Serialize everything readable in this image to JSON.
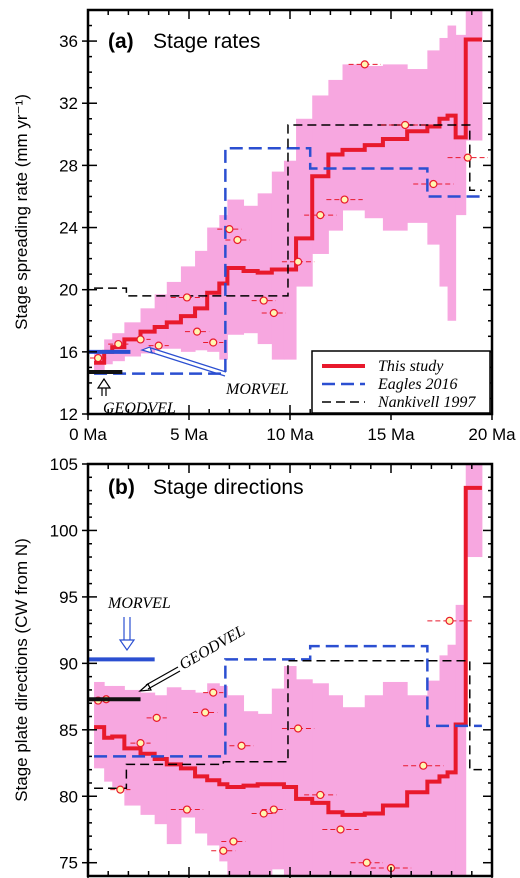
{
  "chart_data": [
    {
      "type": "line",
      "panel_label": "(a)",
      "title": "Stage rates",
      "ylabel": "Stage spreading rate (mm yr⁻¹)",
      "xlabel": "",
      "xlim": [
        0,
        20
      ],
      "ylim": [
        12,
        38
      ],
      "x_ticks": [
        0,
        5,
        10,
        15,
        20
      ],
      "x_tick_labels": [
        "0 Ma",
        "5 Ma",
        "10 Ma",
        "15 Ma",
        "20 Ma"
      ],
      "y_ticks": [
        12,
        16,
        20,
        24,
        28,
        32,
        36
      ],
      "y_tick_labels": [
        "12",
        "16",
        "20",
        "24",
        "28",
        "32",
        "36"
      ],
      "grid": false,
      "legend_position": "bottom-right",
      "legend": [
        "This study",
        "Eagles 2016",
        "Nankivell 1997"
      ],
      "series": [
        {
          "name": "This study",
          "style": "step",
          "color": "#e8192c",
          "edges": [
            0.3,
            0.8,
            1.2,
            1.8,
            2.6,
            3.3,
            3.9,
            4.6,
            5.3,
            5.9,
            6.5,
            6.9,
            7.7,
            8.4,
            9.1,
            9.7,
            10.3,
            11.1,
            11.9,
            12.6,
            13.7,
            14.6,
            15.8,
            16.8,
            17.4,
            17.8,
            18.2,
            18.7,
            19.5
          ],
          "values": [
            15.3,
            16.0,
            16.3,
            16.8,
            17.3,
            17.6,
            17.9,
            18.3,
            18.8,
            19.8,
            20.4,
            21.4,
            21.2,
            21.1,
            21.3,
            21.3,
            23.3,
            27.3,
            28.7,
            29.0,
            29.3,
            29.7,
            30.2,
            30.5,
            31.0,
            31.2,
            29.8,
            36.1
          ]
        },
        {
          "name": "Eagles 2016",
          "style": "step",
          "color": "#2b4fd1",
          "edges": [
            0.3,
            1.2,
            3.1,
            6.8,
            9.9,
            11.0,
            15.2,
            16.8,
            19.5
          ],
          "values": [
            14.6,
            14.6,
            14.6,
            29.1,
            29.1,
            27.8,
            27.8,
            26.0
          ]
        },
        {
          "name": "Nankivell 1997",
          "style": "step",
          "color": "#000000",
          "edges": [
            0.3,
            1.9,
            2.3,
            5.2,
            6.7,
            9.9,
            15.7,
            18.9,
            19.5
          ],
          "values": [
            20.1,
            19.6,
            19.6,
            19.6,
            19.6,
            30.6,
            30.6,
            26.4
          ]
        },
        {
          "name": "Uncertainty band",
          "style": "band",
          "color": "#f7a7e0",
          "edges": [
            0.3,
            0.8,
            1.2,
            1.8,
            2.6,
            3.3,
            3.9,
            4.6,
            5.3,
            5.9,
            6.5,
            6.9,
            7.7,
            8.4,
            9.1,
            9.7,
            10.3,
            11.1,
            11.9,
            12.6,
            13.7,
            14.6,
            15.8,
            16.8,
            17.4,
            17.8,
            18.2,
            18.7,
            19.5
          ],
          "lower": [
            14.6,
            15.2,
            15.4,
            15.7,
            15.9,
            16.2,
            16.2,
            16.0,
            16.1,
            16.0,
            15.5,
            17.1,
            17.2,
            16.5,
            15.5,
            15.5,
            20.2,
            22.3,
            23.8,
            25.1,
            24.6,
            23.8,
            24.3,
            22.9,
            20.2,
            18.0,
            24.8,
            29.6
          ],
          "upper": [
            16.0,
            16.8,
            17.2,
            17.9,
            18.8,
            19.7,
            20.5,
            21.5,
            22.5,
            24.0,
            24.8,
            25.8,
            25.4,
            26.2,
            27.6,
            28.3,
            31.0,
            32.5,
            33.5,
            34.5,
            34.4,
            34.5,
            34.2,
            35.4,
            36.2,
            37.0,
            36.4,
            38.0
          ]
        },
        {
          "name": "Point estimates",
          "style": "scatter",
          "color": "#e8192c",
          "x": [
            0.5,
            1.5,
            2.6,
            3.5,
            4.9,
            5.4,
            6.2,
            7.0,
            7.4,
            8.7,
            9.2,
            10.4,
            11.5,
            12.7,
            13.7,
            15.7,
            17.1,
            18.8
          ],
          "y": [
            15.6,
            16.5,
            16.8,
            16.4,
            19.5,
            17.3,
            16.6,
            23.9,
            23.2,
            19.3,
            18.5,
            21.8,
            24.8,
            25.8,
            34.5,
            30.6,
            26.8,
            28.5
          ],
          "xerr": [
            0.4,
            0.5,
            0.5,
            0.5,
            0.8,
            0.6,
            0.5,
            0.6,
            0.6,
            0.6,
            0.6,
            0.8,
            0.8,
            0.9,
            0.8,
            1.2,
            1.0,
            1.0
          ]
        },
        {
          "name": "MORVEL",
          "style": "segment",
          "color": "#2b4fd1",
          "x": [
            0,
            2.1
          ],
          "y": [
            16.0,
            16.0
          ]
        },
        {
          "name": "GEODVEL",
          "style": "segment",
          "color": "#111111",
          "x": [
            0,
            1.7
          ],
          "y": [
            14.7,
            14.7
          ]
        }
      ],
      "annotations": [
        {
          "text": "MORVEL",
          "target_x": 2.3,
          "target_y": 16.0
        },
        {
          "text": "GEODVEL",
          "target_x": 1.0,
          "target_y": 14.6
        }
      ]
    },
    {
      "type": "line",
      "panel_label": "(b)",
      "title": "Stage directions",
      "ylabel": "Stage plate directions (CW from N)",
      "xlabel": "",
      "xlim": [
        0,
        20
      ],
      "ylim": [
        74,
        105
      ],
      "x_ticks": [
        0,
        5,
        10,
        15,
        20
      ],
      "y_ticks": [
        75,
        80,
        85,
        90,
        95,
        100,
        105
      ],
      "y_tick_labels": [
        "75",
        "80",
        "85",
        "90",
        "95",
        "100",
        "105"
      ],
      "grid": false,
      "series": [
        {
          "name": "This study",
          "style": "step",
          "color": "#e8192c",
          "edges": [
            0.3,
            0.8,
            1.2,
            1.8,
            2.6,
            3.3,
            3.9,
            4.6,
            5.3,
            5.9,
            6.5,
            6.9,
            7.7,
            8.4,
            9.1,
            9.7,
            10.3,
            11.1,
            11.9,
            12.6,
            13.7,
            14.6,
            15.8,
            16.8,
            17.4,
            17.8,
            18.2,
            18.7,
            19.5
          ],
          "values": [
            85.2,
            84.4,
            84.5,
            83.6,
            83.2,
            82.8,
            82.4,
            82.1,
            81.5,
            81.2,
            80.9,
            80.7,
            80.8,
            80.9,
            80.9,
            80.7,
            79.8,
            79.5,
            78.8,
            78.6,
            78.7,
            79.3,
            80.3,
            81.1,
            81.5,
            81.8,
            85.4,
            103.2
          ]
        },
        {
          "name": "Eagles 2016",
          "style": "step",
          "color": "#2b4fd1",
          "edges": [
            0.3,
            1.2,
            3.1,
            6.8,
            9.9,
            11.0,
            15.2,
            16.8,
            19.5
          ],
          "values": [
            83.0,
            83.0,
            83.0,
            90.3,
            90.3,
            91.3,
            91.3,
            85.3
          ]
        },
        {
          "name": "Nankivell 1997",
          "style": "step",
          "color": "#000000",
          "edges": [
            0.3,
            1.9,
            2.3,
            5.2,
            6.7,
            9.9,
            15.7,
            18.9,
            19.5
          ],
          "values": [
            80.6,
            82.4,
            82.4,
            82.4,
            82.6,
            90.2,
            90.2,
            82.0
          ]
        },
        {
          "name": "Uncertainty band",
          "style": "band",
          "color": "#f7a7e0",
          "edges": [
            0.3,
            0.8,
            1.2,
            1.8,
            2.6,
            3.3,
            3.9,
            4.6,
            5.3,
            5.9,
            6.5,
            6.9,
            7.7,
            8.4,
            9.1,
            9.7,
            10.3,
            11.1,
            11.9,
            12.6,
            13.7,
            14.6,
            15.8,
            16.8,
            17.4,
            17.8,
            18.2,
            18.7,
            19.5
          ],
          "lower": [
            82.1,
            81.1,
            80.7,
            79.3,
            78.6,
            77.9,
            76.4,
            78.4,
            77.2,
            76.3,
            75.1,
            73.8,
            73.8,
            74.0,
            74.5,
            73.8,
            74.0,
            74.0,
            74.0,
            74.0,
            74.0,
            74.0,
            74.0,
            74.0,
            74.0,
            74.0,
            74.0,
            98.0
          ],
          "upper": [
            88.6,
            88.3,
            88.3,
            88.0,
            87.8,
            87.6,
            88.2,
            88.0,
            87.8,
            88.5,
            88.3,
            87.6,
            86.4,
            86.2,
            88.1,
            89.8,
            88.8,
            88.5,
            87.6,
            86.7,
            87.6,
            88.6,
            87.6,
            88.7,
            90.6,
            91.4,
            94.4,
            105.0
          ]
        },
        {
          "name": "Point estimates",
          "style": "scatter",
          "color": "#e8192c",
          "x": [
            0.5,
            0.9,
            1.6,
            2.6,
            3.4,
            4.9,
            5.8,
            6.2,
            6.7,
            7.2,
            7.6,
            8.7,
            9.2,
            10.4,
            11.5,
            12.5,
            13.8,
            15.0,
            16.6,
            17.9
          ],
          "y": [
            87.2,
            87.3,
            80.5,
            84.0,
            85.9,
            79.0,
            86.3,
            87.8,
            75.9,
            76.6,
            83.8,
            78.7,
            79.0,
            85.1,
            80.1,
            77.5,
            75.0,
            74.6,
            82.3,
            93.2
          ],
          "xerr": [
            0.4,
            0.4,
            0.5,
            0.5,
            0.5,
            0.8,
            0.6,
            0.5,
            0.6,
            0.6,
            0.6,
            0.6,
            0.6,
            0.8,
            0.8,
            0.9,
            0.8,
            1.0,
            1.0,
            1.1
          ]
        },
        {
          "name": "MORVEL",
          "style": "segment",
          "color": "#2b4fd1",
          "x": [
            0,
            3.3
          ],
          "y": [
            90.3,
            90.3
          ]
        },
        {
          "name": "GEODVEL",
          "style": "segment",
          "color": "#111111",
          "x": [
            0,
            2.6
          ],
          "y": [
            87.3,
            87.3
          ]
        }
      ],
      "annotations": [
        {
          "text": "MORVEL",
          "target_x": 2.0,
          "target_y": 90.6
        },
        {
          "text": "GEODVEL",
          "target_x": 2.8,
          "target_y": 87.5
        }
      ]
    }
  ]
}
